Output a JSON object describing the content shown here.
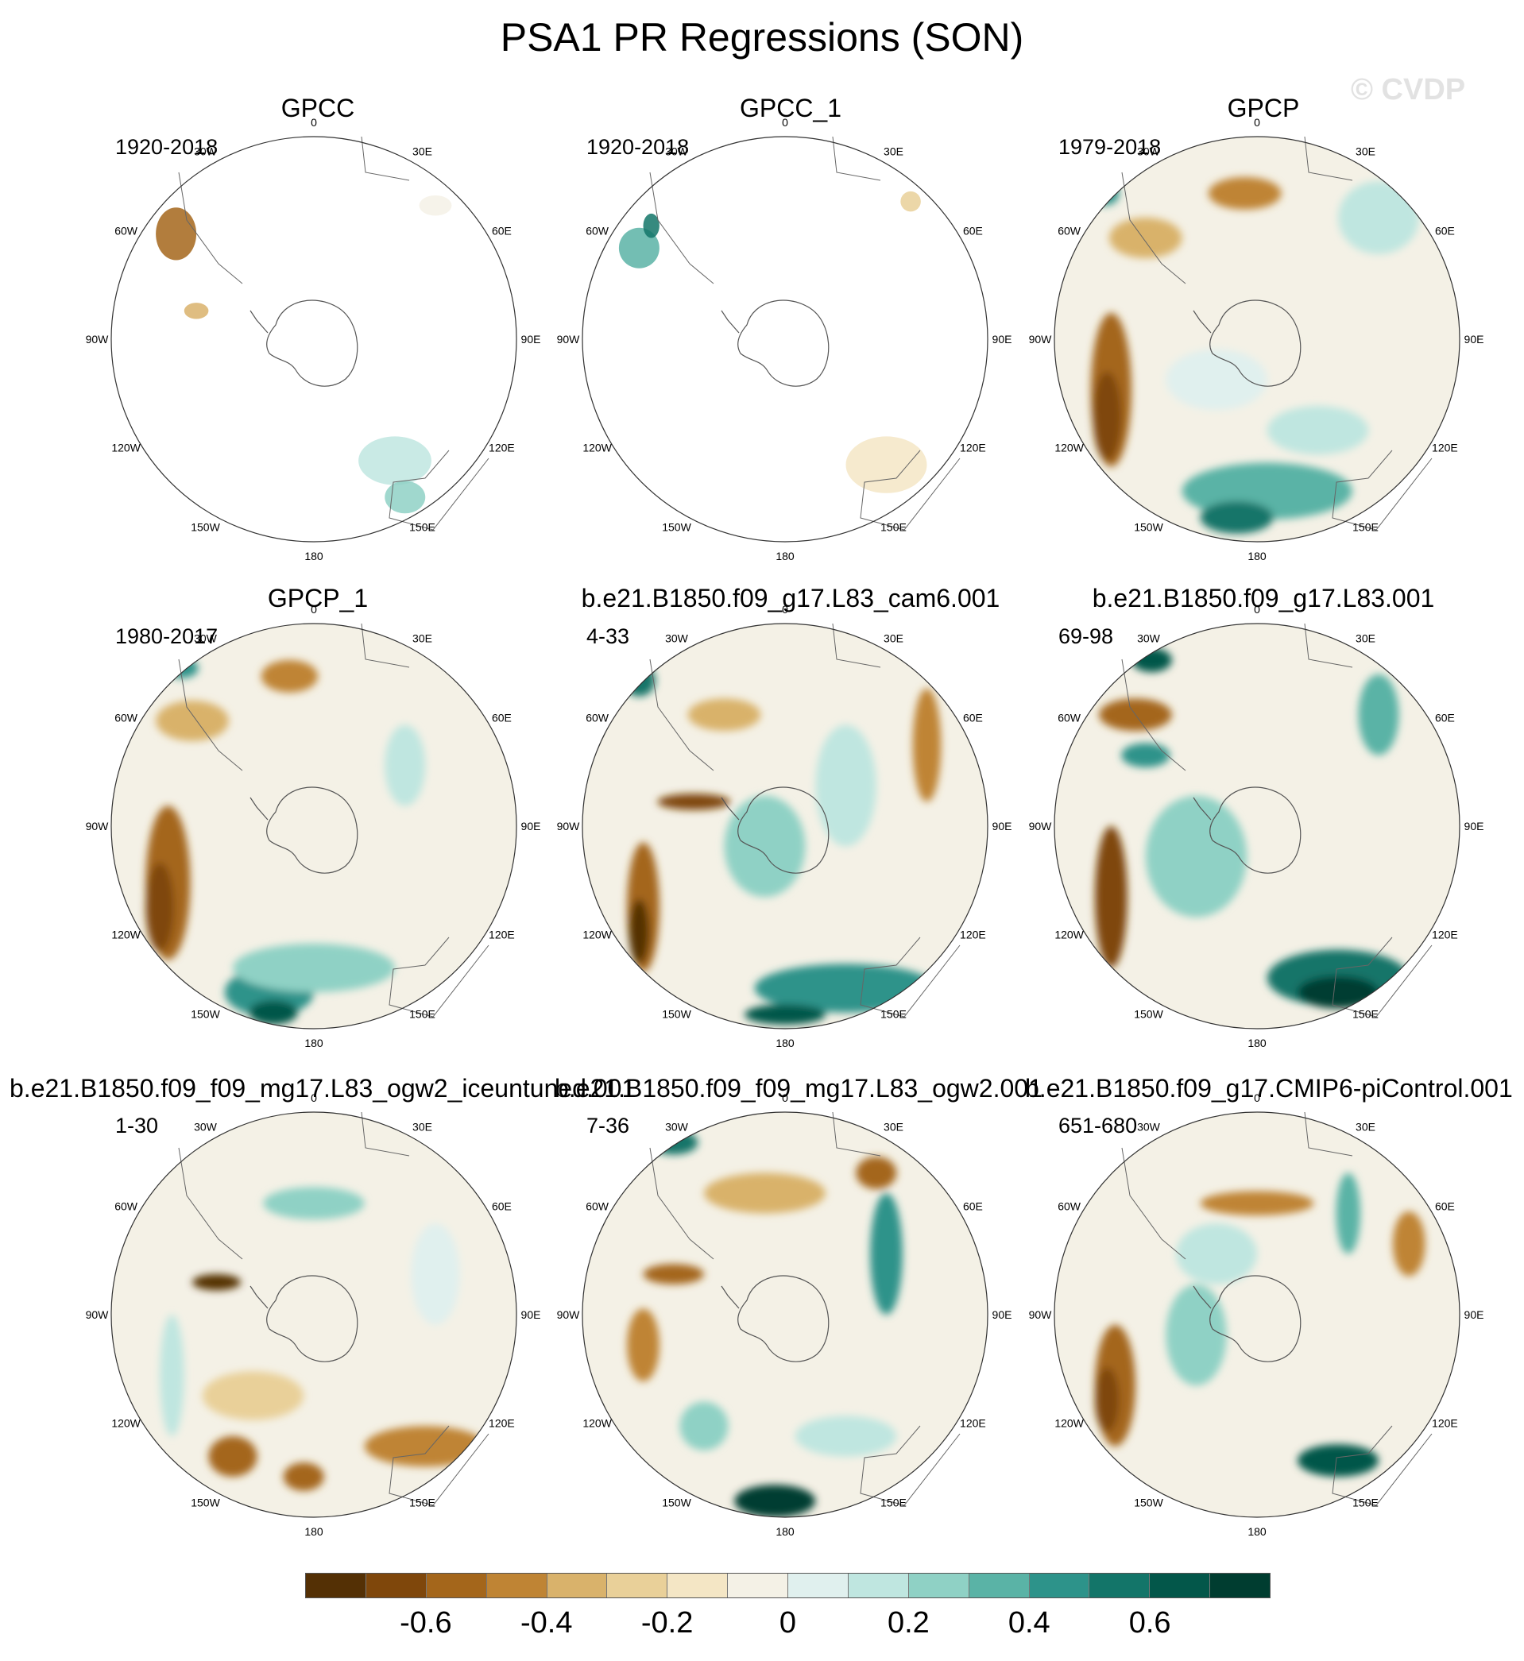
{
  "title": "PSA1 PR Regressions (SON)",
  "watermark": "© CVDP",
  "lon_labels": [
    "0",
    "30E",
    "60E",
    "90E",
    "120E",
    "150E",
    "180",
    "150W",
    "120W",
    "90W",
    "60W",
    "30W"
  ],
  "panels": [
    {
      "title": "GPCC",
      "period": "1920-2018"
    },
    {
      "title": "GPCC_1",
      "period": "1920-2018"
    },
    {
      "title": "GPCP",
      "period": "1979-2018"
    },
    {
      "title": "GPCP_1",
      "period": "1980-2017"
    },
    {
      "title": "b.e21.B1850.f09_g17.L83_cam6.001",
      "period": "4-33"
    },
    {
      "title": "b.e21.B1850.f09_g17.L83.001",
      "period": "69-98"
    },
    {
      "title": "b.e21.B1850.f09_f09_mg17.L83_ogw2_iceuntuned.001",
      "period": "1-30"
    },
    {
      "title": "b.e21.B1850.f09_f09_mg17.L83_ogw2.001",
      "period": "7-36"
    },
    {
      "title": "b.e21.B1850.f09_g17.CMIP6-piControl.001",
      "period": "651-680"
    }
  ],
  "colorbar": {
    "colors": [
      "#543005",
      "#7f470b",
      "#a4661b",
      "#bf8434",
      "#d9b26b",
      "#e9d099",
      "#f4e6c5",
      "#f4f1e6",
      "#e0f0ee",
      "#bfe6e0",
      "#8fd1c5",
      "#5ab3a6",
      "#2d938a",
      "#137569",
      "#03574a",
      "#003d30"
    ],
    "tick_labels": [
      "-0.6",
      "-0.4",
      "-0.2",
      "0",
      "0.2",
      "0.4",
      "0.6"
    ],
    "tick_values": [
      -0.6,
      -0.4,
      -0.2,
      0,
      0.2,
      0.4,
      0.6
    ],
    "range": [
      -0.8,
      0.8
    ]
  }
}
